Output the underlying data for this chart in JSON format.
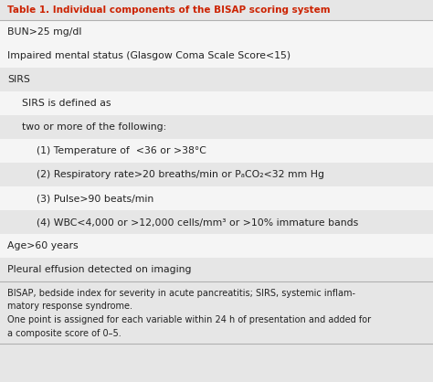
{
  "title": "Table 1. Individual components of the BISAP scoring system",
  "title_color": "#cc2200",
  "bg_light": "#e6e6e6",
  "bg_white": "#f5f5f5",
  "bg_footer": "#e6e6e6",
  "text_color": "#222222",
  "rows": [
    {
      "text": "BUN>25 mg/dl",
      "indent": 0,
      "bg": "white"
    },
    {
      "text": "Impaired mental status (Glasgow Coma Scale Score<15)",
      "indent": 0,
      "bg": "white"
    },
    {
      "text": "SIRS",
      "indent": 0,
      "bg": "light"
    },
    {
      "text": "SIRS is defined as",
      "indent": 1,
      "bg": "white"
    },
    {
      "text": "two or more of the following:",
      "indent": 1,
      "bg": "light"
    },
    {
      "text": "(1) Temperature of  <36 or >38°C",
      "indent": 2,
      "bg": "white"
    },
    {
      "text": "(2) Respiratory rate>20 breaths/min or PₐCO₂<32 mm Hg",
      "indent": 2,
      "bg": "light"
    },
    {
      "text": "(3) Pulse>90 beats/min",
      "indent": 2,
      "bg": "white"
    },
    {
      "text": "(4) WBC<4,000 or >12,000 cells/mm³ or >10% immature bands",
      "indent": 2,
      "bg": "light"
    },
    {
      "text": "Age>60 years",
      "indent": 0,
      "bg": "white"
    },
    {
      "text": "Pleural effusion detected on imaging",
      "indent": 0,
      "bg": "light"
    }
  ],
  "footer_lines": [
    "BISAP, bedside index for severity in acute pancreatitis; SIRS, systemic inflam-",
    "matory response syndrome.",
    "One point is assigned for each variable within 24 h of presentation and added for",
    "a composite score of 0–5."
  ],
  "figw": 4.74,
  "figh": 4.18,
  "dpi": 100
}
